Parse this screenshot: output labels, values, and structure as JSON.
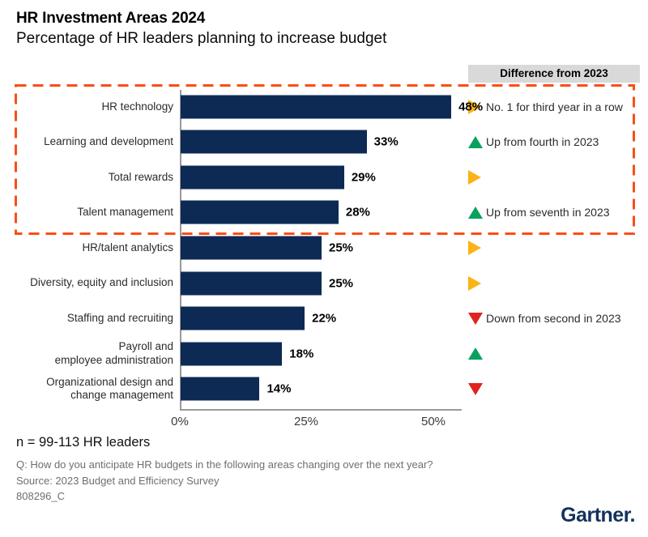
{
  "title": "HR Investment Areas 2024",
  "subtitle": "Percentage of HR leaders planning to increase budget",
  "diff_header": "Difference from 2023",
  "chart_data": {
    "type": "bar",
    "orientation": "horizontal",
    "title": "HR Investment Areas 2024",
    "subtitle": "Percentage of HR leaders planning to increase budget",
    "xlim": [
      0,
      50
    ],
    "x_ticks": [
      "0%",
      "25%",
      "50%"
    ],
    "grid": false,
    "bar_color": "#0d2a54",
    "highlight_box_color": "#fa4e16",
    "highlight_note": "dashed box around top four categories",
    "icon_colors": {
      "right": "#fbb316",
      "up": "#0aa15e",
      "down": "#e0231d"
    },
    "rows": [
      {
        "label": "HR technology",
        "value": 48,
        "value_label": "48%",
        "change_icon": "right",
        "annotation": "No. 1 for third year in a row",
        "highlighted": true
      },
      {
        "label": "Learning and development",
        "value": 33,
        "value_label": "33%",
        "change_icon": "up",
        "annotation": "Up from fourth in 2023",
        "highlighted": true
      },
      {
        "label": "Total rewards",
        "value": 29,
        "value_label": "29%",
        "change_icon": "right",
        "annotation": "",
        "highlighted": true
      },
      {
        "label": "Talent management",
        "value": 28,
        "value_label": "28%",
        "change_icon": "up",
        "annotation": "Up from seventh in 2023",
        "highlighted": true
      },
      {
        "label": "HR/talent analytics",
        "value": 25,
        "value_label": "25%",
        "change_icon": "right",
        "annotation": "",
        "highlighted": false
      },
      {
        "label": "Diversity, equity and inclusion",
        "value": 25,
        "value_label": "25%",
        "change_icon": "right",
        "annotation": "",
        "highlighted": false
      },
      {
        "label": "Staffing and recruiting",
        "value": 22,
        "value_label": "22%",
        "change_icon": "down",
        "annotation": "Down from second in 2023",
        "highlighted": false
      },
      {
        "label": "Payroll and\nemployee administration",
        "value": 18,
        "value_label": "18%",
        "change_icon": "up",
        "annotation": "",
        "highlighted": false
      },
      {
        "label": "Organizational design and\nchange management",
        "value": 14,
        "value_label": "14%",
        "change_icon": "down",
        "annotation": "",
        "highlighted": false
      }
    ]
  },
  "footnotes": {
    "n": "n = 99-113 HR leaders",
    "question": "Q: How do you anticipate HR budgets in the following areas changing over the next year?",
    "source": "Source: 2023 Budget and Efficiency Survey",
    "id": "808296_C"
  },
  "brand": {
    "logo": "Gartner."
  }
}
